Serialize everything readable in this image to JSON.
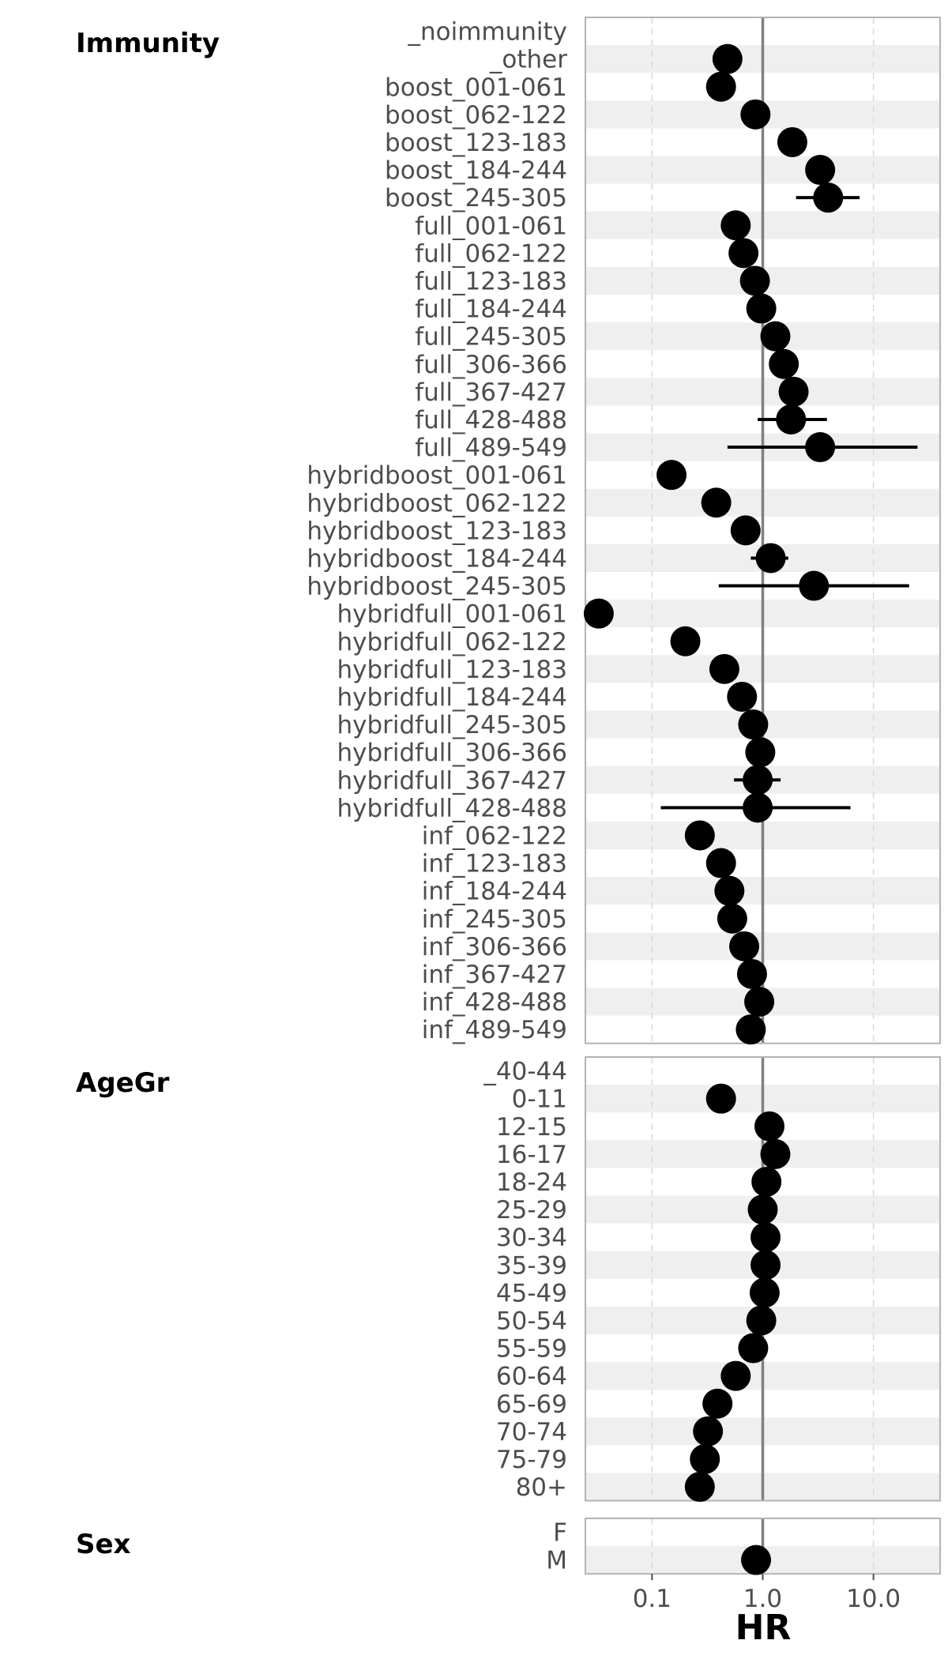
{
  "chart_data": {
    "type": "scatter",
    "subtype": "forest-plot",
    "xlabel": "HR",
    "x_scale": "log",
    "xlim": [
      0.025,
      40
    ],
    "x_ticks": [
      {
        "value": 0.1,
        "label": "0.1"
      },
      {
        "value": 1,
        "label": "1.0"
      },
      {
        "value": 10,
        "label": "10.0"
      }
    ],
    "reference_line": 1,
    "grid": "vertical-dashed",
    "colors": {
      "point": "#000000",
      "ci": "#000000",
      "reference": "#808080",
      "band": "#efefef",
      "panel_border": "#b3b3b3",
      "grid": "#d9d9d9"
    },
    "groups": [
      {
        "name": "Immunity",
        "rows": [
          {
            "label": "_noimmunity",
            "hr": null,
            "lo": null,
            "hi": null
          },
          {
            "label": "_other",
            "hr": 0.48,
            "lo": null,
            "hi": null
          },
          {
            "label": "boost_001-061",
            "hr": 0.42,
            "lo": null,
            "hi": null
          },
          {
            "label": "boost_062-122",
            "hr": 0.86,
            "lo": null,
            "hi": null
          },
          {
            "label": "boost_123-183",
            "hr": 1.85,
            "lo": null,
            "hi": null
          },
          {
            "label": "boost_184-244",
            "hr": 3.3,
            "lo": null,
            "hi": null
          },
          {
            "label": "boost_245-305",
            "hr": 3.9,
            "lo": 2.0,
            "hi": 7.5
          },
          {
            "label": "full_001-061",
            "hr": 0.57,
            "lo": null,
            "hi": null
          },
          {
            "label": "full_062-122",
            "hr": 0.67,
            "lo": null,
            "hi": null
          },
          {
            "label": "full_123-183",
            "hr": 0.85,
            "lo": null,
            "hi": null
          },
          {
            "label": "full_184-244",
            "hr": 0.97,
            "lo": null,
            "hi": null
          },
          {
            "label": "full_245-305",
            "hr": 1.3,
            "lo": null,
            "hi": null
          },
          {
            "label": "full_306-366",
            "hr": 1.55,
            "lo": null,
            "hi": null
          },
          {
            "label": "full_367-427",
            "hr": 1.9,
            "lo": null,
            "hi": null
          },
          {
            "label": "full_428-488",
            "hr": 1.8,
            "lo": 0.9,
            "hi": 3.8
          },
          {
            "label": "full_489-549",
            "hr": 3.3,
            "lo": 0.48,
            "hi": 25
          },
          {
            "label": "hybridboost_001-061",
            "hr": 0.15,
            "lo": null,
            "hi": null
          },
          {
            "label": "hybridboost_062-122",
            "hr": 0.38,
            "lo": null,
            "hi": null
          },
          {
            "label": "hybridboost_123-183",
            "hr": 0.7,
            "lo": null,
            "hi": null
          },
          {
            "label": "hybridboost_184-244",
            "hr": 1.18,
            "lo": 0.78,
            "hi": 1.7
          },
          {
            "label": "hybridboost_245-305",
            "hr": 2.9,
            "lo": 0.4,
            "hi": 21
          },
          {
            "label": "hybridfull_001-061",
            "hr": 0.033,
            "lo": null,
            "hi": null
          },
          {
            "label": "hybridfull_062-122",
            "hr": 0.2,
            "lo": null,
            "hi": null
          },
          {
            "label": "hybridfull_123-183",
            "hr": 0.45,
            "lo": null,
            "hi": null
          },
          {
            "label": "hybridfull_184-244",
            "hr": 0.65,
            "lo": null,
            "hi": null
          },
          {
            "label": "hybridfull_245-305",
            "hr": 0.82,
            "lo": null,
            "hi": null
          },
          {
            "label": "hybridfull_306-366",
            "hr": 0.95,
            "lo": null,
            "hi": null
          },
          {
            "label": "hybridfull_367-427",
            "hr": 0.9,
            "lo": 0.55,
            "hi": 1.45
          },
          {
            "label": "hybridfull_428-488",
            "hr": 0.9,
            "lo": 0.12,
            "hi": 6.2
          },
          {
            "label": "inf_062-122",
            "hr": 0.27,
            "lo": null,
            "hi": null
          },
          {
            "label": "inf_123-183",
            "hr": 0.42,
            "lo": null,
            "hi": null
          },
          {
            "label": "inf_184-244",
            "hr": 0.5,
            "lo": null,
            "hi": null
          },
          {
            "label": "inf_245-305",
            "hr": 0.53,
            "lo": null,
            "hi": null
          },
          {
            "label": "inf_306-366",
            "hr": 0.68,
            "lo": null,
            "hi": null
          },
          {
            "label": "inf_367-427",
            "hr": 0.8,
            "lo": null,
            "hi": null
          },
          {
            "label": "inf_428-488",
            "hr": 0.93,
            "lo": null,
            "hi": null
          },
          {
            "label": "inf_489-549",
            "hr": 0.78,
            "lo": null,
            "hi": null
          }
        ]
      },
      {
        "name": "AgeGr",
        "rows": [
          {
            "label": "_40-44",
            "hr": null,
            "lo": null,
            "hi": null
          },
          {
            "label": "0-11",
            "hr": 0.42,
            "lo": null,
            "hi": null
          },
          {
            "label": "12-15",
            "hr": 1.15,
            "lo": null,
            "hi": null
          },
          {
            "label": "16-17",
            "hr": 1.3,
            "lo": null,
            "hi": null
          },
          {
            "label": "18-24",
            "hr": 1.08,
            "lo": null,
            "hi": null
          },
          {
            "label": "25-29",
            "hr": 1.0,
            "lo": null,
            "hi": null
          },
          {
            "label": "30-34",
            "hr": 1.06,
            "lo": null,
            "hi": null
          },
          {
            "label": "35-39",
            "hr": 1.06,
            "lo": null,
            "hi": null
          },
          {
            "label": "45-49",
            "hr": 1.04,
            "lo": null,
            "hi": null
          },
          {
            "label": "50-54",
            "hr": 0.97,
            "lo": null,
            "hi": null
          },
          {
            "label": "55-59",
            "hr": 0.82,
            "lo": null,
            "hi": null
          },
          {
            "label": "60-64",
            "hr": 0.57,
            "lo": null,
            "hi": null
          },
          {
            "label": "65-69",
            "hr": 0.39,
            "lo": null,
            "hi": null
          },
          {
            "label": "70-74",
            "hr": 0.32,
            "lo": null,
            "hi": null
          },
          {
            "label": "75-79",
            "hr": 0.3,
            "lo": null,
            "hi": null
          },
          {
            "label": "80+",
            "hr": 0.27,
            "lo": null,
            "hi": null
          }
        ]
      },
      {
        "name": "Sex",
        "rows": [
          {
            "label": "F",
            "hr": null,
            "lo": null,
            "hi": null
          },
          {
            "label": "M",
            "hr": 0.87,
            "lo": null,
            "hi": null
          }
        ]
      }
    ]
  }
}
